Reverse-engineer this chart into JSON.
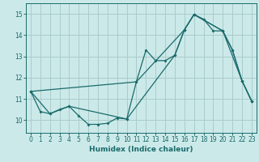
{
  "xlabel": "Humidex (Indice chaleur)",
  "xlim": [
    -0.5,
    23.5
  ],
  "ylim": [
    9.4,
    15.5
  ],
  "xticks": [
    0,
    1,
    2,
    3,
    4,
    5,
    6,
    7,
    8,
    9,
    10,
    11,
    12,
    13,
    14,
    15,
    16,
    17,
    18,
    19,
    20,
    21,
    22,
    23
  ],
  "yticks": [
    10,
    11,
    12,
    13,
    14,
    15
  ],
  "bg_color": "#cce9e9",
  "grid_color": "#aacccc",
  "line_color": "#1a6b6b",
  "series1_x": [
    0,
    1,
    2,
    3,
    4,
    5,
    6,
    7,
    8,
    9,
    10,
    11,
    12,
    13,
    14,
    15,
    16,
    17,
    18,
    19,
    20,
    21,
    22,
    23
  ],
  "series1_y": [
    11.35,
    10.4,
    10.3,
    10.5,
    10.65,
    10.2,
    9.8,
    9.8,
    9.85,
    10.1,
    10.05,
    11.8,
    13.3,
    12.8,
    12.8,
    13.05,
    14.25,
    14.97,
    14.75,
    14.2,
    14.2,
    13.3,
    11.85,
    10.9
  ],
  "series2_x": [
    0,
    2,
    4,
    10,
    15,
    16,
    17,
    20,
    21,
    22,
    23
  ],
  "series2_y": [
    11.35,
    10.3,
    10.65,
    10.05,
    13.05,
    14.25,
    14.97,
    14.2,
    13.3,
    11.85,
    10.9
  ],
  "series3_x": [
    0,
    11,
    16,
    17,
    20,
    22,
    23
  ],
  "series3_y": [
    11.35,
    11.8,
    14.25,
    14.97,
    14.2,
    11.85,
    10.9
  ]
}
